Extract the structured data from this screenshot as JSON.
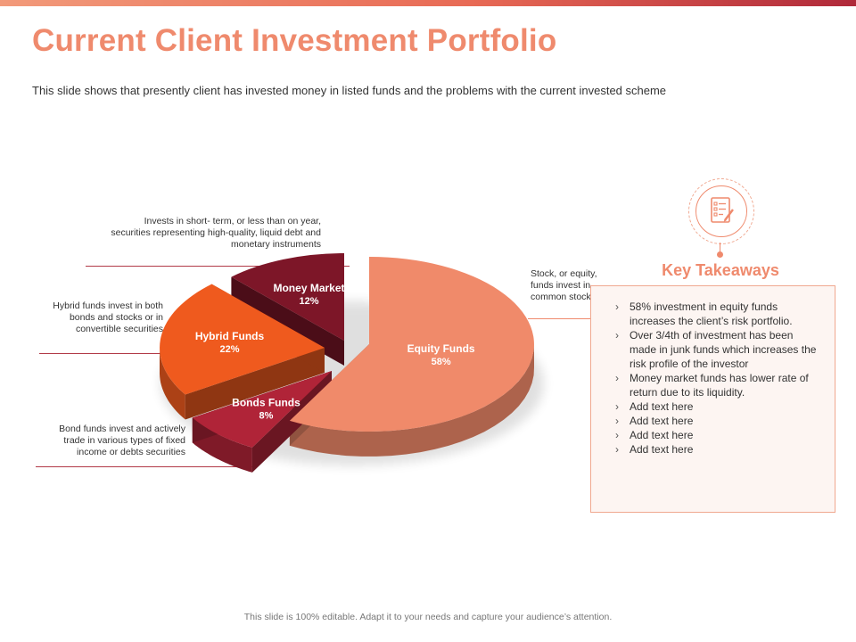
{
  "title": "Current Client Investment Portfolio",
  "subtitle": "This slide shows that presently client has invested money in listed funds and the problems with the current invested scheme",
  "notes": {
    "money_market": "Invests in short- term, or less than on year, securities representing high-quality, liquid debt and monetary instruments",
    "hybrid": "Hybrid funds invest in both bonds and stocks or in convertible securities",
    "bonds": "Bond funds invest and actively trade in various types of fixed income or debts securities",
    "equity": "Stock, or equity, funds invest in common stocks"
  },
  "key_takeaways": {
    "title": "Key Takeaways",
    "icon": "checklist-icon",
    "items": [
      "58% investment in equity funds increases the client’s risk portfolio.",
      "Over 3/4th of investment has been made in junk funds which increases the risk profile of the investor",
      "Money market funds has lower rate of return due to its liquidity.",
      "Add text here",
      "Add text here",
      "Add text here",
      "Add text here"
    ]
  },
  "footer": "This slide is 100% editable. Adapt it to your needs and capture your audience’s attention.",
  "colors": {
    "accent": "#ef8a6d",
    "equity": "#f08a6a",
    "bonds": "#b02438",
    "hybrid": "#ef5a1e",
    "money_market": "#7d1628"
  },
  "chart_data": {
    "type": "pie",
    "title": "",
    "exploded": true,
    "three_d": true,
    "slices": [
      {
        "label": "Equity Funds",
        "value": 58,
        "value_label": "58%",
        "color": "#f08a6a"
      },
      {
        "label": "Bonds Funds",
        "value": 8,
        "value_label": "8%",
        "color": "#b02438"
      },
      {
        "label": "Hybrid Funds",
        "value": 22,
        "value_label": "22%",
        "color": "#ef5a1e"
      },
      {
        "label": "Money Market",
        "value": 12,
        "value_label": "12%",
        "color": "#7d1628"
      }
    ]
  }
}
